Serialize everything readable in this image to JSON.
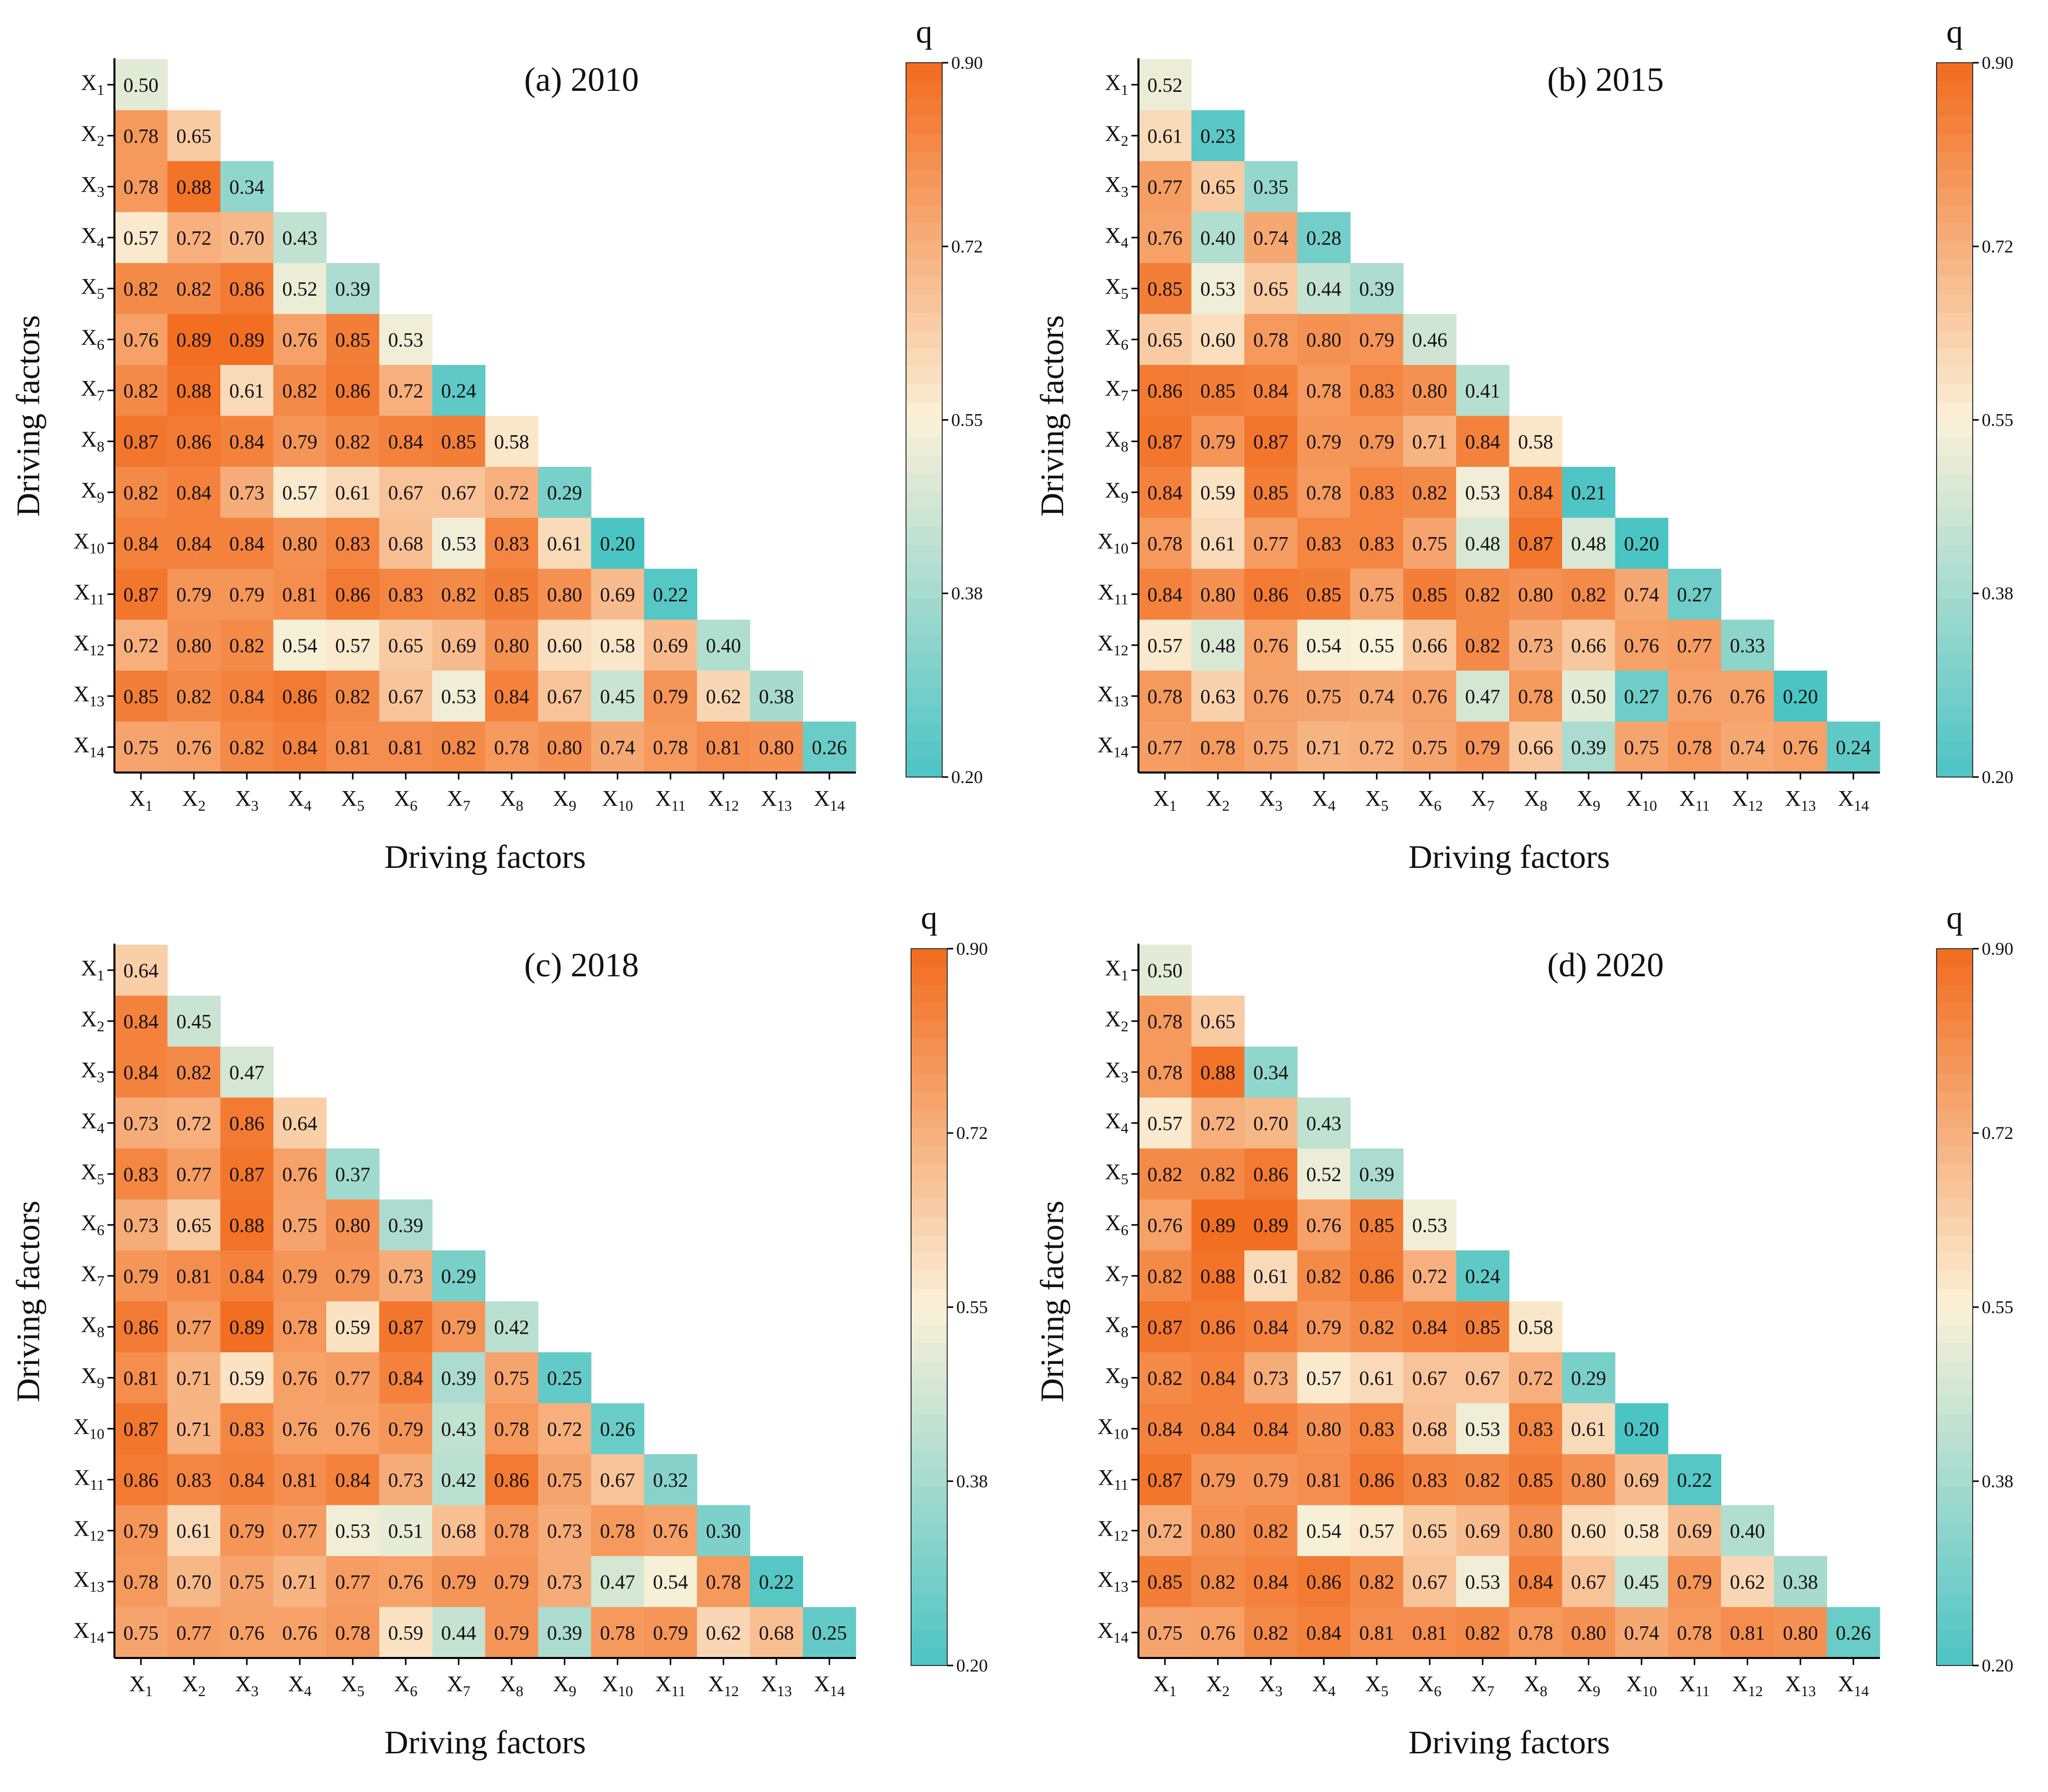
{
  "palette": {
    "low": "#4bc4c4",
    "mid": "#fbf1d8",
    "high": "#f26b1d"
  },
  "colorbar": {
    "title": "q",
    "ticks": [
      "0.20",
      "0.38",
      "0.55",
      "0.72",
      "0.90"
    ],
    "min": 0.2,
    "max": 0.9
  },
  "chart_data": [
    {
      "type": "heatmap",
      "title": "(a) 2010",
      "xlabel": "Driving factors",
      "ylabel": "Driving factors",
      "labels": [
        "X1",
        "X2",
        "X3",
        "X4",
        "X5",
        "X6",
        "X7",
        "X8",
        "X9",
        "X10",
        "X11",
        "X12",
        "X13",
        "X14"
      ],
      "label_base": "X",
      "label_subs": [
        "1",
        "2",
        "3",
        "4",
        "5",
        "6",
        "7",
        "8",
        "9",
        "10",
        "11",
        "12",
        "13",
        "14"
      ],
      "matrix": [
        [
          "0.50"
        ],
        [
          "0.78",
          "0.65"
        ],
        [
          "0.78",
          "0.88",
          "0.34"
        ],
        [
          "0.57",
          "0.72",
          "0.70",
          "0.43"
        ],
        [
          "0.82",
          "0.82",
          "0.86",
          "0.52",
          "0.39"
        ],
        [
          "0.76",
          "0.89",
          "0.89",
          "0.76",
          "0.85",
          "0.53"
        ],
        [
          "0.82",
          "0.88",
          "0.61",
          "0.82",
          "0.86",
          "0.72",
          "0.24"
        ],
        [
          "0.87",
          "0.86",
          "0.84",
          "0.79",
          "0.82",
          "0.84",
          "0.85",
          "0.58"
        ],
        [
          "0.82",
          "0.84",
          "0.73",
          "0.57",
          "0.61",
          "0.67",
          "0.67",
          "0.72",
          "0.29"
        ],
        [
          "0.84",
          "0.84",
          "0.84",
          "0.80",
          "0.83",
          "0.68",
          "0.53",
          "0.83",
          "0.61",
          "0.20"
        ],
        [
          "0.87",
          "0.79",
          "0.79",
          "0.81",
          "0.86",
          "0.83",
          "0.82",
          "0.85",
          "0.80",
          "0.69",
          "0.22"
        ],
        [
          "0.72",
          "0.80",
          "0.82",
          "0.54",
          "0.57",
          "0.65",
          "0.69",
          "0.80",
          "0.60",
          "0.58",
          "0.69",
          "0.40"
        ],
        [
          "0.85",
          "0.82",
          "0.84",
          "0.86",
          "0.82",
          "0.67",
          "0.53",
          "0.84",
          "0.67",
          "0.45",
          "0.79",
          "0.62",
          "0.38"
        ],
        [
          "0.75",
          "0.76",
          "0.82",
          "0.84",
          "0.81",
          "0.81",
          "0.82",
          "0.78",
          "0.80",
          "0.74",
          "0.78",
          "0.81",
          "0.80",
          "0.26"
        ]
      ]
    },
    {
      "type": "heatmap",
      "title": "(b) 2015",
      "xlabel": "Driving factors",
      "ylabel": "Driving factors",
      "labels": [
        "X1",
        "X2",
        "X3",
        "X4",
        "X5",
        "X6",
        "X7",
        "X8",
        "X9",
        "X10",
        "X11",
        "X12",
        "X13",
        "X14"
      ],
      "label_base": "X",
      "label_subs": [
        "1",
        "2",
        "3",
        "4",
        "5",
        "6",
        "7",
        "8",
        "9",
        "10",
        "11",
        "12",
        "13",
        "14"
      ],
      "matrix": [
        [
          "0.52"
        ],
        [
          "0.61",
          "0.23"
        ],
        [
          "0.77",
          "0.65",
          "0.35"
        ],
        [
          "0.76",
          "0.40",
          "0.74",
          "0.28"
        ],
        [
          "0.85",
          "0.53",
          "0.65",
          "0.44",
          "0.39"
        ],
        [
          "0.65",
          "0.60",
          "0.78",
          "0.80",
          "0.79",
          "0.46"
        ],
        [
          "0.86",
          "0.85",
          "0.84",
          "0.78",
          "0.83",
          "0.80",
          "0.41"
        ],
        [
          "0.87",
          "0.79",
          "0.87",
          "0.79",
          "0.79",
          "0.71",
          "0.84",
          "0.58"
        ],
        [
          "0.84",
          "0.59",
          "0.85",
          "0.78",
          "0.83",
          "0.82",
          "0.53",
          "0.84",
          "0.21"
        ],
        [
          "0.78",
          "0.61",
          "0.77",
          "0.83",
          "0.83",
          "0.75",
          "0.48",
          "0.87",
          "0.48",
          "0.20"
        ],
        [
          "0.84",
          "0.80",
          "0.86",
          "0.85",
          "0.75",
          "0.85",
          "0.82",
          "0.80",
          "0.82",
          "0.74",
          "0.27"
        ],
        [
          "0.57",
          "0.48",
          "0.76",
          "0.54",
          "0.55",
          "0.66",
          "0.82",
          "0.73",
          "0.66",
          "0.76",
          "0.77",
          "0.33"
        ],
        [
          "0.78",
          "0.63",
          "0.76",
          "0.75",
          "0.74",
          "0.76",
          "0.47",
          "0.78",
          "0.50",
          "0.27",
          "0.76",
          "0.76",
          "0.20"
        ],
        [
          "0.77",
          "0.78",
          "0.75",
          "0.71",
          "0.72",
          "0.75",
          "0.79",
          "0.66",
          "0.39",
          "0.75",
          "0.78",
          "0.74",
          "0.76",
          "0.24"
        ]
      ]
    },
    {
      "type": "heatmap",
      "title": "(c) 2018",
      "xlabel": "Driving factors",
      "ylabel": "Driving factors",
      "labels": [
        "X1",
        "X2",
        "X3",
        "X4",
        "X5",
        "X6",
        "X7",
        "X8",
        "X9",
        "X10",
        "X11",
        "X12",
        "X13",
        "X14"
      ],
      "label_base": "X",
      "label_subs": [
        "1",
        "2",
        "3",
        "4",
        "5",
        "6",
        "7",
        "8",
        "9",
        "10",
        "11",
        "12",
        "13",
        "14"
      ],
      "matrix": [
        [
          "0.64"
        ],
        [
          "0.84",
          "0.45"
        ],
        [
          "0.84",
          "0.82",
          "0.47"
        ],
        [
          "0.73",
          "0.72",
          "0.86",
          "0.64"
        ],
        [
          "0.83",
          "0.77",
          "0.87",
          "0.76",
          "0.37"
        ],
        [
          "0.73",
          "0.65",
          "0.88",
          "0.75",
          "0.80",
          "0.39"
        ],
        [
          "0.79",
          "0.81",
          "0.84",
          "0.79",
          "0.79",
          "0.73",
          "0.29"
        ],
        [
          "0.86",
          "0.77",
          "0.89",
          "0.78",
          "0.59",
          "0.87",
          "0.79",
          "0.42"
        ],
        [
          "0.81",
          "0.71",
          "0.59",
          "0.76",
          "0.77",
          "0.84",
          "0.39",
          "0.75",
          "0.25"
        ],
        [
          "0.87",
          "0.71",
          "0.83",
          "0.76",
          "0.76",
          "0.79",
          "0.43",
          "0.78",
          "0.72",
          "0.26"
        ],
        [
          "0.86",
          "0.83",
          "0.84",
          "0.81",
          "0.84",
          "0.73",
          "0.42",
          "0.86",
          "0.75",
          "0.67",
          "0.32"
        ],
        [
          "0.79",
          "0.61",
          "0.79",
          "0.77",
          "0.53",
          "0.51",
          "0.68",
          "0.78",
          "0.73",
          "0.78",
          "0.76",
          "0.30"
        ],
        [
          "0.78",
          "0.70",
          "0.75",
          "0.71",
          "0.77",
          "0.76",
          "0.79",
          "0.79",
          "0.73",
          "0.47",
          "0.54",
          "0.78",
          "0.22"
        ],
        [
          "0.75",
          "0.77",
          "0.76",
          "0.76",
          "0.78",
          "0.59",
          "0.44",
          "0.79",
          "0.39",
          "0.78",
          "0.79",
          "0.62",
          "0.68",
          "0.25"
        ]
      ]
    },
    {
      "type": "heatmap",
      "title": "(d) 2020",
      "xlabel": "Driving factors",
      "ylabel": "Driving factors",
      "labels": [
        "X1",
        "X2",
        "X3",
        "X4",
        "X5",
        "X6",
        "X7",
        "X8",
        "X9",
        "X10",
        "X11",
        "X12",
        "X13",
        "X14"
      ],
      "label_base": "X",
      "label_subs": [
        "1",
        "2",
        "3",
        "4",
        "5",
        "6",
        "7",
        "8",
        "9",
        "10",
        "11",
        "12",
        "13",
        "14"
      ],
      "matrix": [
        [
          "0.50"
        ],
        [
          "0.78",
          "0.65"
        ],
        [
          "0.78",
          "0.88",
          "0.34"
        ],
        [
          "0.57",
          "0.72",
          "0.70",
          "0.43"
        ],
        [
          "0.82",
          "0.82",
          "0.86",
          "0.52",
          "0.39"
        ],
        [
          "0.76",
          "0.89",
          "0.89",
          "0.76",
          "0.85",
          "0.53"
        ],
        [
          "0.82",
          "0.88",
          "0.61",
          "0.82",
          "0.86",
          "0.72",
          "0.24"
        ],
        [
          "0.87",
          "0.86",
          "0.84",
          "0.79",
          "0.82",
          "0.84",
          "0.85",
          "0.58"
        ],
        [
          "0.82",
          "0.84",
          "0.73",
          "0.57",
          "0.61",
          "0.67",
          "0.67",
          "0.72",
          "0.29"
        ],
        [
          "0.84",
          "0.84",
          "0.84",
          "0.80",
          "0.83",
          "0.68",
          "0.53",
          "0.83",
          "0.61",
          "0.20"
        ],
        [
          "0.87",
          "0.79",
          "0.79",
          "0.81",
          "0.86",
          "0.83",
          "0.82",
          "0.85",
          "0.80",
          "0.69",
          "0.22"
        ],
        [
          "0.72",
          "0.80",
          "0.82",
          "0.54",
          "0.57",
          "0.65",
          "0.69",
          "0.80",
          "0.60",
          "0.58",
          "0.69",
          "0.40"
        ],
        [
          "0.85",
          "0.82",
          "0.84",
          "0.86",
          "0.82",
          "0.67",
          "0.53",
          "0.84",
          "0.67",
          "0.45",
          "0.79",
          "0.62",
          "0.38"
        ],
        [
          "0.75",
          "0.76",
          "0.82",
          "0.84",
          "0.81",
          "0.81",
          "0.82",
          "0.78",
          "0.80",
          "0.74",
          "0.78",
          "0.81",
          "0.80",
          "0.26"
        ]
      ]
    }
  ]
}
